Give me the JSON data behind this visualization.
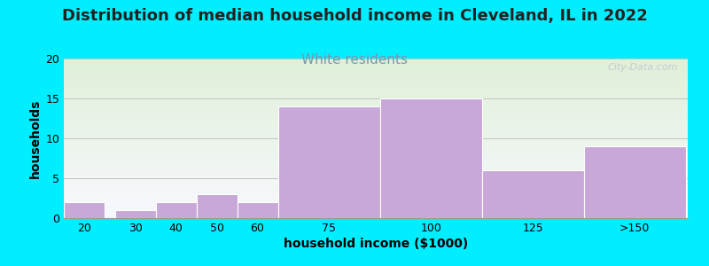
{
  "title": "Distribution of median household income in Cleveland, IL in 2022",
  "subtitle": "White residents",
  "xlabel": "household income ($1000)",
  "ylabel": "households",
  "bar_labels": [
    "20",
    "30",
    "40",
    "50",
    "60",
    "75",
    "100",
    "125",
    ">150"
  ],
  "bar_heights": [
    2,
    1,
    2,
    3,
    2,
    14,
    15,
    6,
    9
  ],
  "bar_color": "#C8A8D8",
  "ylim": [
    0,
    20
  ],
  "yticks": [
    0,
    5,
    10,
    15,
    20
  ],
  "background_color": "#00EEFF",
  "plot_bg_gradient_top": "#dff0d8",
  "plot_bg_gradient_bottom": "#f8f8ff",
  "title_fontsize": 13,
  "title_color": "#222222",
  "subtitle_fontsize": 11,
  "subtitle_color": "#7799AA",
  "axis_label_fontsize": 10,
  "tick_fontsize": 9,
  "watermark": "City-Data.com",
  "bar_widths": [
    10,
    10,
    10,
    10,
    10,
    25,
    25,
    25,
    25
  ],
  "bar_lefts": [
    10,
    22.5,
    32.5,
    42.5,
    52.5,
    62.5,
    87.5,
    112.5,
    137.5
  ],
  "xtick_positions": [
    15,
    27.5,
    37.5,
    47.5,
    57.5,
    75,
    100,
    125,
    150
  ],
  "xlim": [
    10,
    163
  ]
}
